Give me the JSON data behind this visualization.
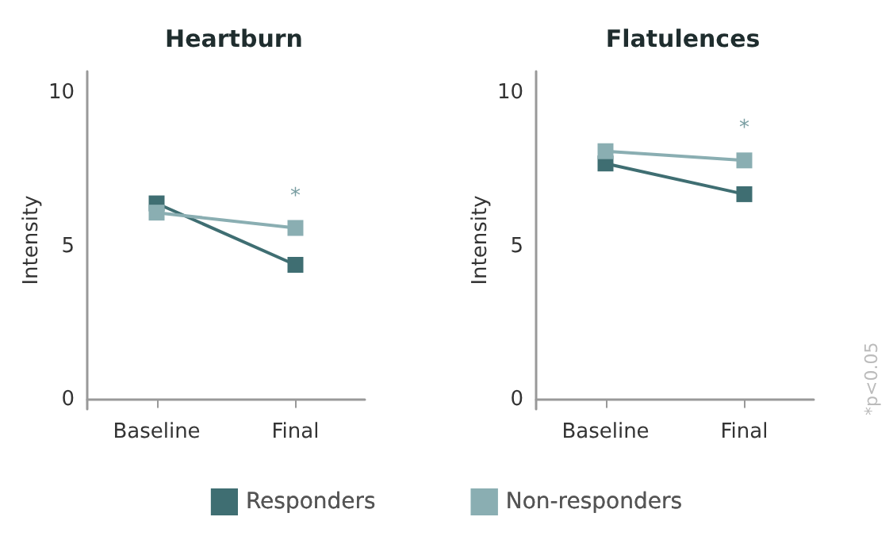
{
  "chart_data": [
    {
      "type": "line",
      "title": "Heartburn",
      "ylabel": "Intensity",
      "categories": [
        "Baseline",
        "Final"
      ],
      "ylim": [
        -0.3,
        10.7
      ],
      "yticks": [
        0,
        5,
        10
      ],
      "grid": false,
      "legend": "bottom",
      "marker": "square",
      "line_style": "solid",
      "series": [
        {
          "name": "Responders",
          "color": "#3f6e72",
          "values": [
            6.4,
            4.4
          ]
        },
        {
          "name": "Non-responders",
          "color": "#8aaeb2",
          "values": [
            6.1,
            5.6
          ]
        }
      ],
      "annotations": [
        "*"
      ]
    },
    {
      "type": "line",
      "title": "Flatulences",
      "ylabel": "Intensity",
      "categories": [
        "Baseline",
        "Final"
      ],
      "ylim": [
        -0.3,
        10.7
      ],
      "yticks": [
        0,
        5,
        10
      ],
      "grid": false,
      "legend": "bottom",
      "marker": "square",
      "line_style": "solid",
      "series": [
        {
          "name": "Responders",
          "color": "#3f6e72",
          "values": [
            7.7,
            6.7
          ]
        },
        {
          "name": "Non-responders",
          "color": "#8aaeb2",
          "values": [
            8.1,
            7.8
          ]
        }
      ],
      "annotations": [
        "*",
        "*p<0.05"
      ]
    }
  ]
}
